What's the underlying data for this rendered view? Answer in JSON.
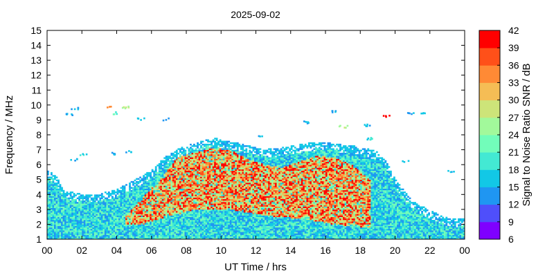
{
  "chart_data": {
    "type": "heatmap",
    "title": "2025-09-02",
    "xlabel": "UT Time / hrs",
    "ylabel": "Frequency / MHz",
    "colorbar_label": "Signal to Noise Ratio SNR / dB",
    "xlim": [
      0,
      24
    ],
    "ylim": [
      1,
      15
    ],
    "x_ticks": [
      "00",
      "02",
      "04",
      "06",
      "08",
      "10",
      "12",
      "14",
      "16",
      "18",
      "20",
      "22",
      "00"
    ],
    "y_ticks": [
      "1",
      "2",
      "3",
      "4",
      "5",
      "6",
      "7",
      "8",
      "9",
      "10",
      "11",
      "12",
      "13",
      "14",
      "15"
    ],
    "colorbar_ticks": [
      "6",
      "9",
      "12",
      "15",
      "18",
      "21",
      "24",
      "27",
      "30",
      "33",
      "36",
      "39",
      "42"
    ],
    "colorbar_levels": [
      6,
      9,
      12,
      15,
      18,
      21,
      24,
      27,
      30,
      33,
      36,
      39,
      42
    ],
    "colorbar_colors": [
      "#7f00ff",
      "#4f4ffb",
      "#1f96f2",
      "#12c8e6",
      "#43e9d3",
      "#72fdba",
      "#a2f99b",
      "#cde479",
      "#f5bd55",
      "#ff8a35",
      "#ff5019",
      "#ff0000"
    ],
    "upper_envelope_mhz": {
      "x": [
        0,
        0.5,
        1,
        2,
        3,
        4,
        5,
        6,
        6.7,
        7.5,
        8.5,
        9.5,
        10,
        11,
        12,
        13,
        14,
        15,
        16,
        17,
        18,
        19,
        19.5,
        20,
        21,
        22,
        23,
        24
      ],
      "y": [
        5.6,
        5.2,
        4.2,
        4.0,
        4.0,
        4.3,
        4.9,
        5.6,
        6.4,
        7.0,
        7.4,
        7.8,
        7.6,
        7.4,
        7.1,
        7.0,
        7.2,
        7.4,
        7.5,
        7.3,
        7.2,
        6.8,
        6.2,
        5.0,
        3.5,
        2.9,
        2.4,
        2.3
      ]
    },
    "high_snr_region": {
      "x": [
        4.5,
        5.5,
        6.5,
        7.5,
        8.5,
        9.5,
        10.5,
        11.5,
        12.5,
        13.5,
        14.5,
        15.5,
        16.5,
        17.5,
        18.5
      ],
      "y_low": [
        2.0,
        2.0,
        2.4,
        2.7,
        3.0,
        3.0,
        3.0,
        2.8,
        2.6,
        2.5,
        2.4,
        2.2,
        2.0,
        1.9,
        1.8
      ],
      "y_high": [
        2.5,
        3.8,
        5.0,
        6.5,
        6.8,
        7.1,
        7.0,
        6.4,
        6.0,
        5.8,
        6.2,
        6.6,
        6.5,
        6.0,
        5.0
      ]
    },
    "scattered_echoes": [
      {
        "x": 1.3,
        "y": 9.4,
        "snr": 16
      },
      {
        "x": 1.5,
        "y": 9.8,
        "snr": 16
      },
      {
        "x": 3.6,
        "y": 9.9,
        "snr": 35
      },
      {
        "x": 4.0,
        "y": 9.5,
        "snr": 22
      },
      {
        "x": 4.4,
        "y": 9.9,
        "snr": 26
      },
      {
        "x": 5.3,
        "y": 9.1,
        "snr": 16
      },
      {
        "x": 6.7,
        "y": 9.1,
        "snr": 15
      },
      {
        "x": 1.5,
        "y": 6.4,
        "snr": 15
      },
      {
        "x": 2.1,
        "y": 6.7,
        "snr": 18
      },
      {
        "x": 3.6,
        "y": 6.8,
        "snr": 15
      },
      {
        "x": 4.7,
        "y": 6.9,
        "snr": 15
      },
      {
        "x": 14.9,
        "y": 8.9,
        "snr": 16
      },
      {
        "x": 16.3,
        "y": 9.6,
        "snr": 15
      },
      {
        "x": 17.0,
        "y": 8.6,
        "snr": 26
      },
      {
        "x": 18.4,
        "y": 8.7,
        "snr": 15
      },
      {
        "x": 19.4,
        "y": 9.3,
        "snr": 40
      },
      {
        "x": 20.8,
        "y": 9.5,
        "snr": 15
      },
      {
        "x": 21.6,
        "y": 9.5,
        "snr": 15
      },
      {
        "x": 20.6,
        "y": 6.3,
        "snr": 17
      },
      {
        "x": 23.2,
        "y": 5.6,
        "snr": 15
      },
      {
        "x": 18.6,
        "y": 7.8,
        "snr": 18
      },
      {
        "x": 12.2,
        "y": 7.9,
        "snr": 16
      }
    ]
  }
}
